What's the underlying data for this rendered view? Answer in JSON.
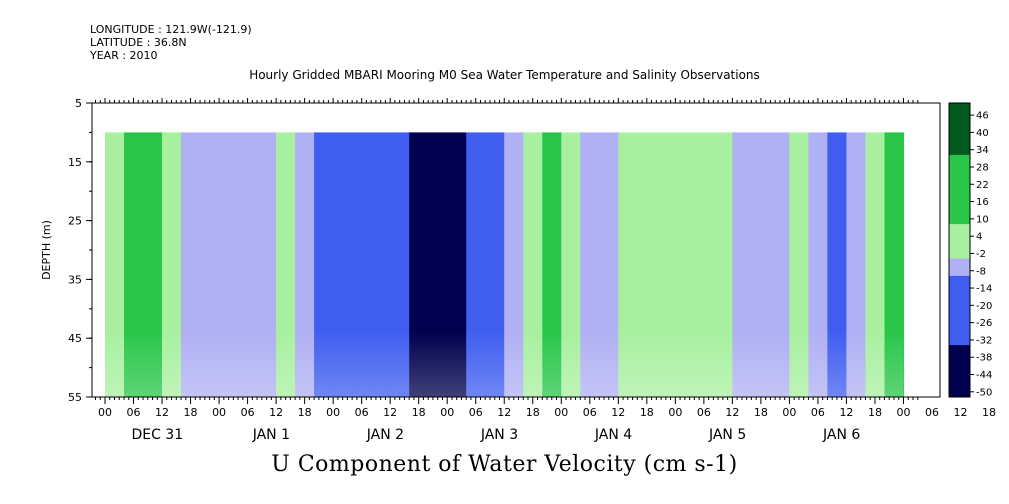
{
  "meta": {
    "longitude": "LONGITUDE : 121.9W(-121.9)",
    "latitude": "LATITUDE : 36.8N",
    "year": "YEAR : 2010"
  },
  "chart_data": {
    "type": "heatmap",
    "title": "Hourly Gridded MBARI Mooring M0 Sea Water Temperature and Salinity Observations",
    "subtitle": "U Component of Water Velocity (cm s-1)",
    "ylabel": "DEPTH (m)",
    "ylim": [
      55,
      5
    ],
    "y_ticks": [
      "5",
      "15",
      "25",
      "35",
      "45",
      "55"
    ],
    "x_hour_ticks": [
      "00",
      "06",
      "12",
      "18",
      "00",
      "06",
      "12",
      "18",
      "00",
      "06",
      "12",
      "18",
      "00",
      "06",
      "12",
      "18",
      "00",
      "06",
      "12",
      "18",
      "00",
      "06",
      "12",
      "18",
      "00",
      "06",
      "12",
      "18",
      "00",
      "06",
      "12",
      "18"
    ],
    "x_day_labels": [
      "DEC 31",
      "JAN  1",
      "JAN  2",
      "JAN  3",
      "JAN  4",
      "JAN  5",
      "JAN  6"
    ],
    "data_depth_range": [
      10,
      55
    ],
    "time_series": [
      {
        "hour": 2,
        "u": 2
      },
      {
        "hour": 6,
        "u": 10
      },
      {
        "hour": 10,
        "u": 12
      },
      {
        "hour": 14,
        "u": 8
      },
      {
        "hour": 18,
        "u": 0
      },
      {
        "hour": 22,
        "u": -6
      },
      {
        "hour": 26,
        "u": -8
      },
      {
        "hour": 30,
        "u": -4
      },
      {
        "hour": 34,
        "u": 0
      },
      {
        "hour": 38,
        "u": 4
      },
      {
        "hour": 42,
        "u": -6
      },
      {
        "hour": 46,
        "u": -18
      },
      {
        "hour": 50,
        "u": -26
      },
      {
        "hour": 54,
        "u": -28
      },
      {
        "hour": 58,
        "u": -30
      },
      {
        "hour": 62,
        "u": -32
      },
      {
        "hour": 66,
        "u": -36
      },
      {
        "hour": 70,
        "u": -40
      },
      {
        "hour": 74,
        "u": -38
      },
      {
        "hour": 78,
        "u": -30
      },
      {
        "hour": 82,
        "u": -16
      },
      {
        "hour": 86,
        "u": 0
      },
      {
        "hour": 90,
        "u": 8
      },
      {
        "hour": 94,
        "u": 12
      },
      {
        "hour": 98,
        "u": 4
      },
      {
        "hour": 102,
        "u": -4
      },
      {
        "hour": 106,
        "u": -4
      },
      {
        "hour": 110,
        "u": 4
      },
      {
        "hour": 114,
        "u": 6
      },
      {
        "hour": 118,
        "u": 6
      },
      {
        "hour": 122,
        "u": 6
      },
      {
        "hour": 126,
        "u": 4
      },
      {
        "hour": 130,
        "u": 4
      },
      {
        "hour": 134,
        "u": -6
      },
      {
        "hour": 138,
        "u": -10
      },
      {
        "hour": 142,
        "u": -6
      },
      {
        "hour": 146,
        "u": 4
      },
      {
        "hour": 150,
        "u": -8
      },
      {
        "hour": 154,
        "u": -12
      },
      {
        "hour": 158,
        "u": -4
      },
      {
        "hour": 162,
        "u": 8
      },
      {
        "hour": 166,
        "u": 10
      }
    ],
    "colorbar_labels": [
      "46",
      "40",
      "34",
      "28",
      "22",
      "16",
      "10",
      "4",
      "-2",
      "-8",
      "-14",
      "-20",
      "-26",
      "-32",
      "-38",
      "-44",
      "-50"
    ],
    "colorbar_range": [
      -50,
      52
    ],
    "palette": {
      "strong_positive": "#005a1e",
      "positive": "#29c64a",
      "weak_positive": "#a8f0a0",
      "weak_negative": "#b0b0f4",
      "negative": "#3f5ef0",
      "strong_negative": "#00004e"
    },
    "grid": false
  }
}
